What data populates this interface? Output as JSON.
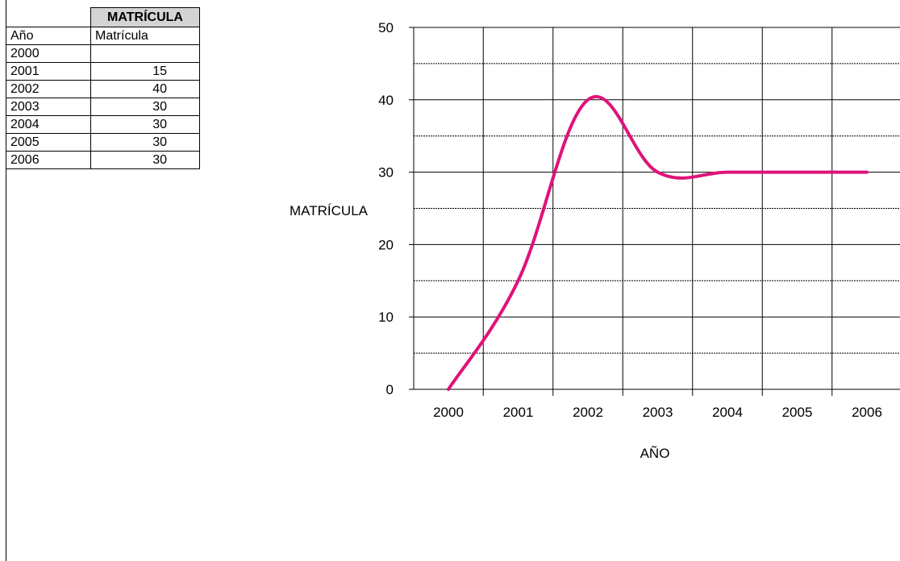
{
  "table": {
    "title": "MATRÍCULA",
    "headers": [
      "Año",
      "Matrícula"
    ],
    "rows": [
      [
        "2000",
        ""
      ],
      [
        "2001",
        "15"
      ],
      [
        "2002",
        "40"
      ],
      [
        "2003",
        "30"
      ],
      [
        "2004",
        "30"
      ],
      [
        "2005",
        "30"
      ],
      [
        "2006",
        "30"
      ]
    ]
  },
  "chart_data": {
    "type": "line",
    "x": [
      2000,
      2001,
      2002,
      2003,
      2004,
      2005,
      2006
    ],
    "categories": [
      "2000",
      "2001",
      "2002",
      "2003",
      "2004",
      "2005",
      "2006"
    ],
    "series": [
      {
        "values": [
          0,
          15,
          40,
          30,
          30,
          30,
          30
        ],
        "color": "#e0127a",
        "smooth": true
      }
    ],
    "xlabel": "AÑO",
    "ylabel": "MATRÍCULA",
    "ylim": [
      0,
      50
    ],
    "yticks": [
      "0",
      "10",
      "20",
      "30",
      "40",
      "50"
    ],
    "grid": true,
    "minor_grid_dashed": true
  }
}
